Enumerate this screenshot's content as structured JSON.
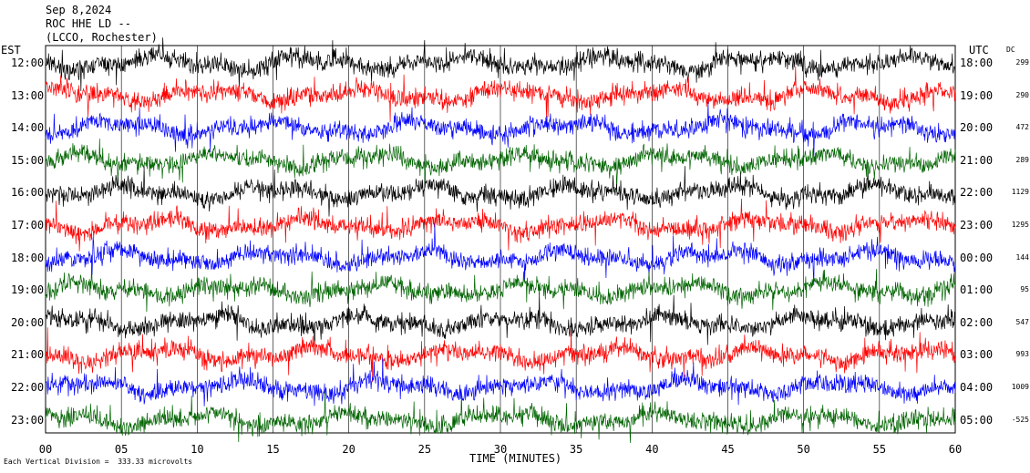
{
  "header": {
    "date": "Sep 8,2024",
    "station": "ROC HHE LD --",
    "location": "(LCCO, Rochester)"
  },
  "axes": {
    "left_title": "EST",
    "right_title": "UTC",
    "dc_title": "DC",
    "x_title": "TIME (MINUTES)",
    "footnote": "Each Vertical Division =  333.33 microvolts"
  },
  "chart_data": {
    "type": "line",
    "title": "",
    "xlabel": "TIME (MINUTES)",
    "xlim": [
      0,
      60
    ],
    "x_ticks": [
      "00",
      "05",
      "10",
      "15",
      "20",
      "25",
      "30",
      "35",
      "40",
      "45",
      "50",
      "55",
      "60"
    ],
    "trace_colors": [
      "#000000",
      "#ff0000",
      "#0000ff",
      "#006400"
    ],
    "rows": [
      {
        "est": "12:00",
        "utc": "18:00",
        "dc": "299"
      },
      {
        "est": "13:00",
        "utc": "19:00",
        "dc": "290"
      },
      {
        "est": "14:00",
        "utc": "20:00",
        "dc": "472"
      },
      {
        "est": "15:00",
        "utc": "21:00",
        "dc": "289"
      },
      {
        "est": "16:00",
        "utc": "22:00",
        "dc": "1129"
      },
      {
        "est": "17:00",
        "utc": "23:00",
        "dc": "1295"
      },
      {
        "est": "18:00",
        "utc": "00:00",
        "dc": "144"
      },
      {
        "est": "19:00",
        "utc": "01:00",
        "dc": "95"
      },
      {
        "est": "20:00",
        "utc": "02:00",
        "dc": "547"
      },
      {
        "est": "21:00",
        "utc": "03:00",
        "dc": "993"
      },
      {
        "est": "22:00",
        "utc": "04:00",
        "dc": "1009"
      },
      {
        "est": "23:00",
        "utc": "05:00",
        "dc": "-525"
      }
    ]
  }
}
